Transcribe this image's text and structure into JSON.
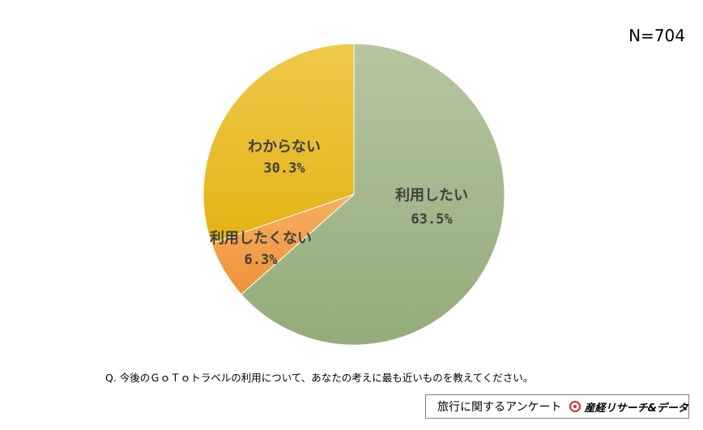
{
  "n_label": "N=704",
  "question": "Q. 今後のＧｏＴｏトラベルの利用について、あなたの考えに最も近いものを教えてください。",
  "footer": {
    "survey_name": "旅行に関するアンケート",
    "brand": "産経リサーチ&データ"
  },
  "colors": {
    "use": "#a3b88b",
    "not_use": "#f3a04e",
    "unknown": "#ecbf2a",
    "brand_red": "#d32f2f"
  },
  "chart_data": {
    "type": "pie",
    "title": "",
    "start_angle_deg": 0,
    "direction": "clockwise",
    "slices": [
      {
        "label": "利用したい",
        "value": 63.5,
        "display": "63.5%",
        "color": "#a3b88b"
      },
      {
        "label": "利用したくない",
        "value": 6.3,
        "display": "6.3%",
        "color": "#f3a04e"
      },
      {
        "label": "わからない",
        "value": 30.3,
        "display": "30.3%",
        "color": "#ecbf2a"
      }
    ]
  }
}
